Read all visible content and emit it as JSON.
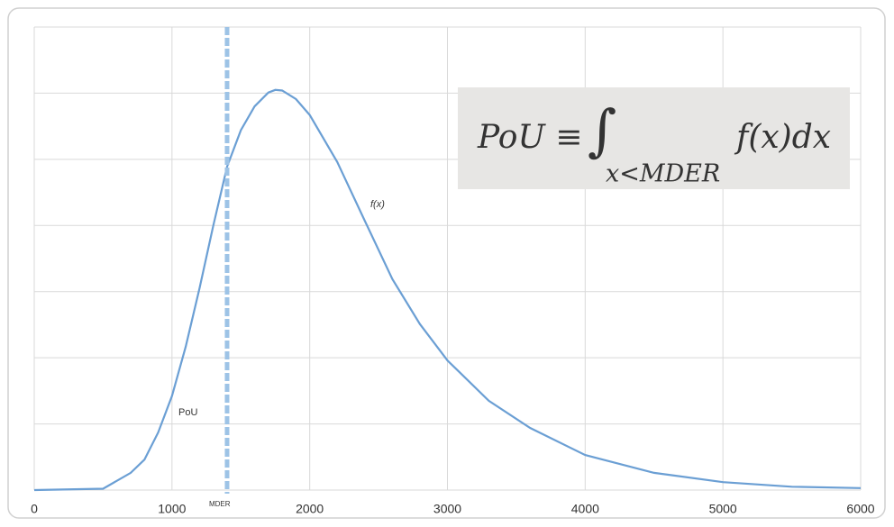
{
  "chart_data": {
    "type": "line",
    "x": [
      0,
      500,
      700,
      800,
      900,
      1000,
      1100,
      1200,
      1300,
      1400,
      1500,
      1600,
      1700,
      1750,
      1800,
      1900,
      2000,
      2200,
      2400,
      2600,
      2800,
      3000,
      3300,
      3600,
      4000,
      4500,
      5000,
      5500,
      6000
    ],
    "series": [
      {
        "name": "f(x)",
        "color": "#6b9fd4",
        "values": [
          0,
          0.02,
          0.26,
          0.46,
          0.87,
          1.42,
          2.17,
          3.05,
          4.0,
          4.89,
          5.44,
          5.8,
          6.01,
          6.05,
          6.04,
          5.91,
          5.67,
          4.96,
          4.07,
          3.19,
          2.51,
          1.96,
          1.35,
          0.94,
          0.53,
          0.26,
          0.12,
          0.05,
          0.03
        ]
      }
    ],
    "xlim": [
      0,
      6000
    ],
    "xticks": [
      0,
      1000,
      2000,
      3000,
      4000,
      5000,
      6000
    ],
    "ylim": [
      0,
      7
    ],
    "yticks": [
      0,
      1,
      2,
      3,
      4,
      5,
      6,
      7
    ],
    "grid": true,
    "threshold": {
      "label": "MDER",
      "x": 1400,
      "color": "#9dc3e6"
    },
    "annotations": {
      "area": "PoU",
      "curve": "f(x)"
    },
    "formula": {
      "lhs": "PoU ≡",
      "integral": "∫",
      "subscript": "x<MDER",
      "integrand": "f(x)dx"
    }
  }
}
